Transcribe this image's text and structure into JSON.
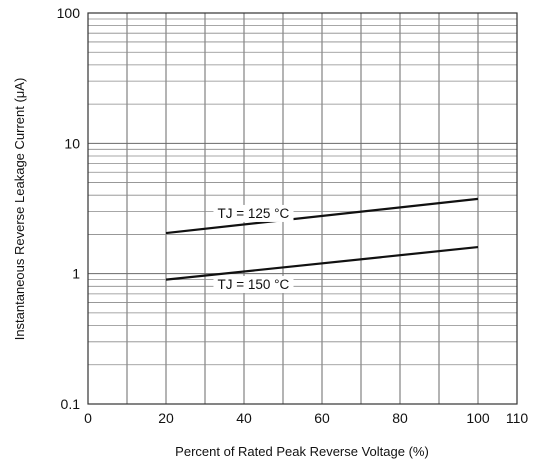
{
  "chart_data": {
    "type": "line",
    "xlabel": "Percent of Rated Peak Reverse Voltage (%)",
    "ylabel": "Instantaneous Reverse Leakage Current (μA)",
    "x_scale": "linear",
    "y_scale": "log",
    "xlim": [
      0,
      110
    ],
    "ylim": [
      0.1,
      100
    ],
    "x_ticks": [
      "0",
      "20",
      "40",
      "60",
      "80",
      "100",
      "110"
    ],
    "y_ticks": [
      "100",
      "10",
      "1",
      "0.1"
    ],
    "grid": true,
    "series": [
      {
        "name": "TJ = 125 °C",
        "x": [
          20,
          100
        ],
        "y": [
          2.05,
          3.75
        ]
      },
      {
        "name": "TJ = 150 °C",
        "x": [
          20,
          100
        ],
        "y": [
          0.9,
          1.6
        ]
      }
    ]
  }
}
